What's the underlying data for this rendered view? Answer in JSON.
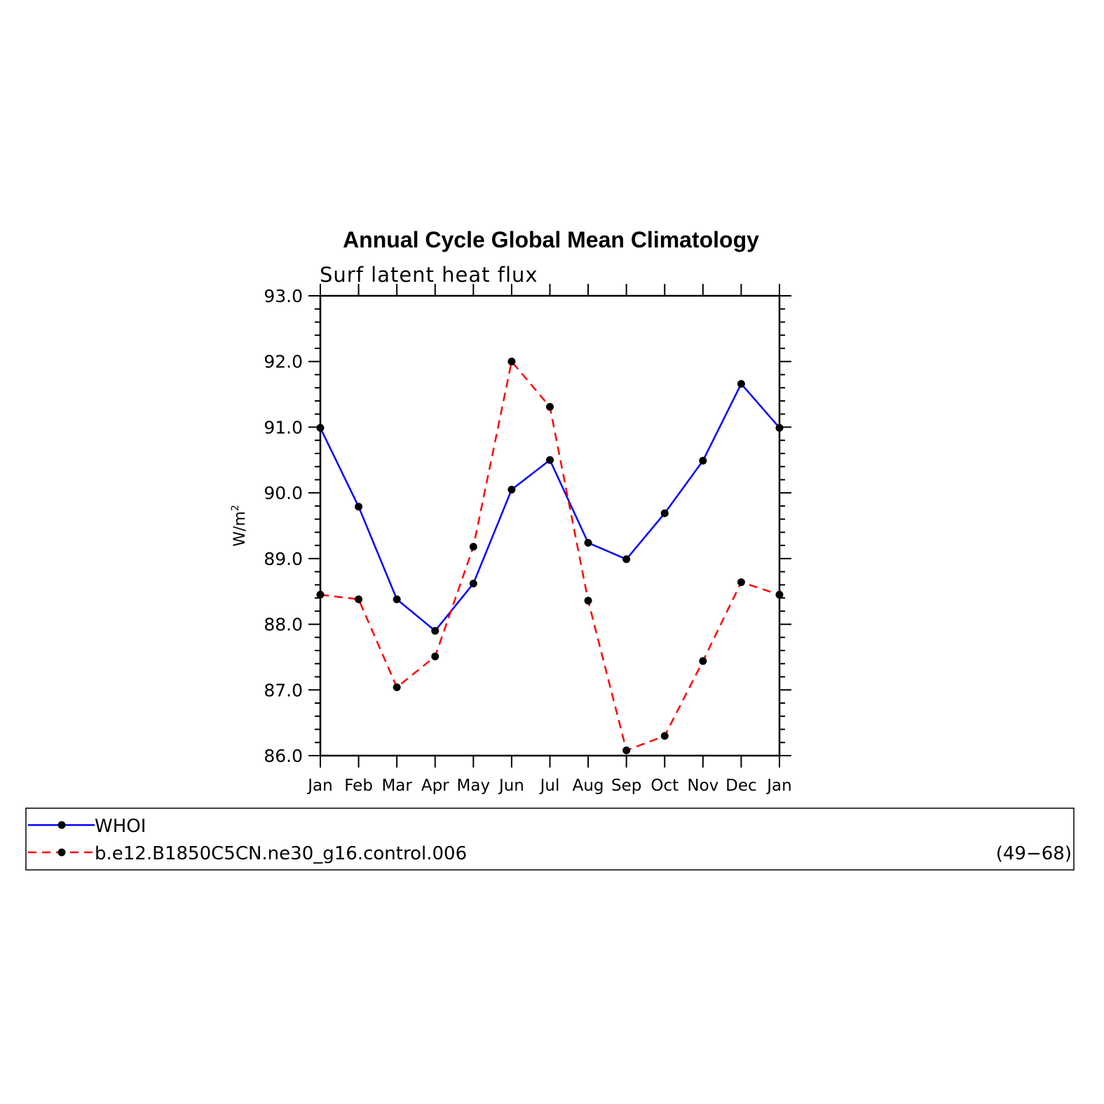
{
  "chart_data": {
    "type": "line",
    "title": "Annual Cycle Global Mean Climatology",
    "subtitle": "Surf latent heat flux",
    "ylabel_base": "W/m",
    "ylabel_sup": "2",
    "categories": [
      "Jan",
      "Feb",
      "Mar",
      "Apr",
      "May",
      "Jun",
      "Jul",
      "Aug",
      "Sep",
      "Oct",
      "Nov",
      "Dec",
      "Jan"
    ],
    "ylim": [
      86.0,
      93.0
    ],
    "yticks": [
      "86.0",
      "87.0",
      "88.0",
      "89.0",
      "90.0",
      "91.0",
      "92.0",
      "93.0"
    ],
    "grid": false,
    "legend_position": "bottom",
    "series": [
      {
        "name": "WHOI",
        "color": "#0000ff",
        "dash": "solid",
        "values": [
          90.99,
          89.79,
          88.38,
          87.9,
          88.62,
          90.05,
          90.5,
          89.24,
          88.99,
          89.69,
          90.49,
          91.66,
          90.99
        ]
      },
      {
        "name": "b.e12.B1850C5CN.ne30_g16.control.006",
        "color": "#ff0000",
        "dash": "dashed",
        "values": [
          88.45,
          88.38,
          87.04,
          87.51,
          89.18,
          92.0,
          91.31,
          88.36,
          86.08,
          86.3,
          87.44,
          88.64,
          88.45
        ]
      }
    ],
    "legend_annotation": "(49−68)"
  }
}
